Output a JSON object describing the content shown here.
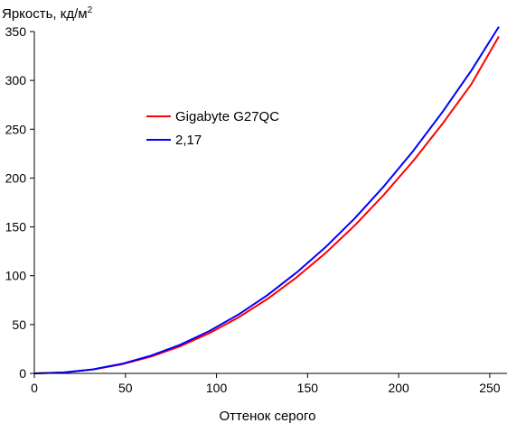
{
  "chart_data": {
    "type": "line",
    "ylabel": "Яркость, кд/м",
    "ylabel_superscript": "2",
    "xlabel": "Оттенок серого",
    "xlim": [
      0,
      256
    ],
    "ylim": [
      0,
      350
    ],
    "xticks": [
      0,
      50,
      100,
      150,
      200,
      250
    ],
    "yticks": [
      0,
      50,
      100,
      150,
      200,
      250,
      300,
      350
    ],
    "grid": false,
    "legend_position": "upper-left-center",
    "series": [
      {
        "name": "Gigabyte G27QC",
        "color": "#ff0000",
        "x": [
          0,
          16,
          32,
          48,
          64,
          80,
          96,
          112,
          128,
          144,
          160,
          176,
          192,
          208,
          224,
          240,
          255
        ],
        "y": [
          0,
          0.9,
          3.9,
          9.3,
          17.2,
          27.8,
          41.1,
          57.3,
          76.3,
          98.4,
          123.5,
          151.7,
          183.1,
          217.6,
          255.4,
          296.5,
          345
        ]
      },
      {
        "name": "2,17",
        "color": "#0000ff",
        "x": [
          0,
          16,
          32,
          48,
          64,
          80,
          96,
          112,
          128,
          144,
          160,
          176,
          192,
          208,
          224,
          240,
          255
        ],
        "y": [
          0,
          0.9,
          4.1,
          9.8,
          18.2,
          29.3,
          43.3,
          60.2,
          80.2,
          103.3,
          129.5,
          159.0,
          191.8,
          227.9,
          267.5,
          310.5,
          355
        ]
      }
    ]
  }
}
